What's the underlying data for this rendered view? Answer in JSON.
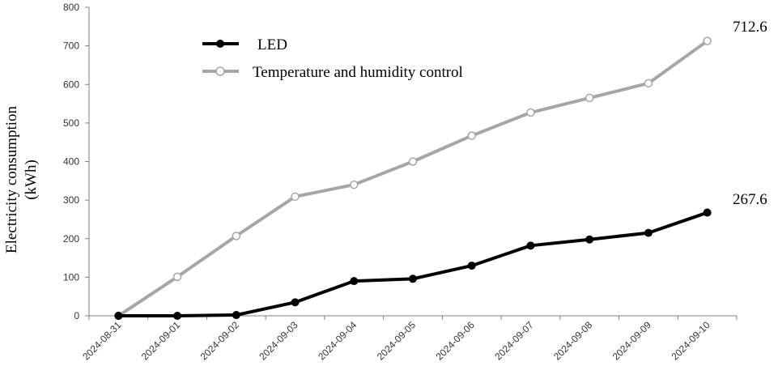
{
  "chart_data": {
    "type": "line",
    "categories": [
      "2024-08-31",
      "2024-09-01",
      "2024-09-02",
      "2024-09-03",
      "2024-09-04",
      "2024-09-05",
      "2024-09-06",
      "2024-09-07",
      "2024-09-08",
      "2024-09-09",
      "2024-09-10"
    ],
    "series": [
      {
        "name": "LED",
        "color": "#000000",
        "marker": "filled-circle",
        "values": [
          0,
          0,
          2,
          35,
          90,
          96,
          130,
          182,
          198,
          215,
          267.6
        ],
        "end_label": "267.6"
      },
      {
        "name": "Temperature and humidity control",
        "color": "#a6a6a6",
        "marker": "open-circle",
        "values": [
          0,
          101,
          207,
          309,
          340,
          400,
          467,
          527,
          565,
          603,
          712.6
        ],
        "end_label": "712.6"
      }
    ],
    "ylabel_line1": "Electricity consumption",
    "ylabel_line2": "(kWh)",
    "ylim": [
      0,
      800
    ],
    "yticks": [
      0,
      100,
      200,
      300,
      400,
      500,
      600,
      700,
      800
    ],
    "grid": false,
    "legend_position": "top-left"
  }
}
